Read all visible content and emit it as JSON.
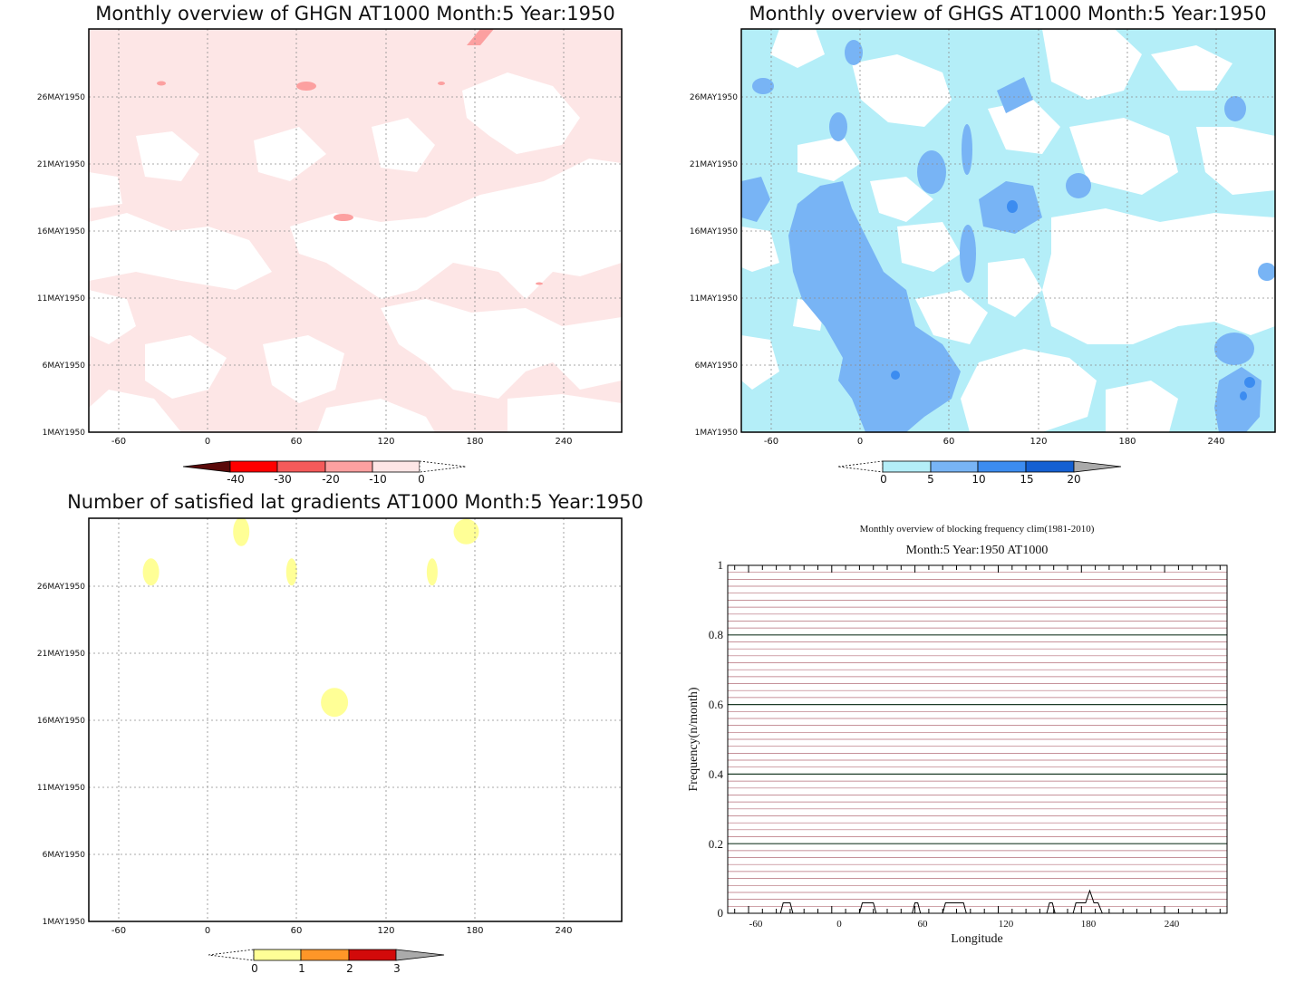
{
  "panels": {
    "ghgn": {
      "title": "Monthly overview of GHGN AT1000 Month:5 Year:1950",
      "colorbar_ticks": [
        "-40",
        "-30",
        "-20",
        "-10",
        "0"
      ],
      "colors": [
        "#5a0a0a",
        "#ff0000",
        "#f55a5a",
        "#fca0a0",
        "#fde6e6",
        "#ffffff"
      ]
    },
    "ghgs": {
      "title": "Monthly overview of GHGS AT1000 Month:5 Year:1950",
      "colorbar_ticks": [
        "0",
        "5",
        "10",
        "15",
        "20"
      ],
      "colors": [
        "#ffffff",
        "#b4eef8",
        "#78b4f5",
        "#3c8cf0",
        "#1460d2",
        "#aaaaaa"
      ]
    },
    "nsat": {
      "title": "Number of satisfied lat gradients AT1000 Month:5 Year:1950",
      "colorbar_ticks": [
        "0",
        "1",
        "2",
        "3"
      ],
      "colors": [
        "#ffffff",
        "#ffff96",
        "#ff9628",
        "#d20a0a",
        "#aaaaaa"
      ]
    }
  },
  "common_axes": {
    "x_ticks": [
      "-60",
      "0",
      "60",
      "120",
      "180",
      "240"
    ],
    "y_ticks": [
      "1MAY1950",
      "6MAY1950",
      "11MAY1950",
      "16MAY1950",
      "21MAY1950",
      "26MAY1950"
    ]
  },
  "freq": {
    "title": "Monthly overview of blocking frequency clim(1981-2010)",
    "subtitle": "Month:5 Year:1950  AT1000",
    "xlabel": "Longitude",
    "ylabel": "Frequency(n/month)",
    "x_ticks": [
      "-60",
      "0",
      "60",
      "120",
      "180",
      "240"
    ],
    "y_ticks": [
      "0",
      "0.2",
      "0.4",
      "0.6",
      "0.8",
      "1"
    ]
  },
  "chart_data": [
    {
      "type": "heatmap",
      "title": "Monthly overview of GHGN AT1000 Month:5 Year:1950",
      "x_axis": "longitude",
      "xlim": [
        -75,
        285
      ],
      "y_axis": "date",
      "ylim": [
        "1MAY1950",
        "31MAY1950"
      ],
      "grid": true,
      "levels": [
        -40,
        -30,
        -20,
        -10,
        0
      ],
      "description_values": "mostly 0 to -10 band with scattered -10 to -20 spots near top"
    },
    {
      "type": "heatmap",
      "title": "Monthly overview of GHGS AT1000 Month:5 Year:1950",
      "x_axis": "longitude",
      "xlim": [
        -75,
        285
      ],
      "y_axis": "date",
      "ylim": [
        "1MAY1950",
        "31MAY1950"
      ],
      "grid": true,
      "levels": [
        0,
        5,
        10,
        15,
        20
      ]
    },
    {
      "type": "heatmap",
      "title": "Number of satisfied lat gradients AT1000 Month:5 Year:1950",
      "x_axis": "longitude",
      "xlim": [
        -75,
        285
      ],
      "y_axis": "date",
      "ylim": [
        "1MAY1950",
        "31MAY1950"
      ],
      "grid": true,
      "levels": [
        0,
        1,
        2,
        3
      ],
      "spots": [
        {
          "lon": 28,
          "date": 30
        },
        {
          "lon": 180,
          "date": 30
        },
        {
          "lon": -33,
          "date": 27
        },
        {
          "lon": 62,
          "date": 27
        },
        {
          "lon": 157,
          "date": 27
        },
        {
          "lon": 91,
          "date": 17.3
        }
      ]
    },
    {
      "type": "line",
      "title": "Monthly overview of blocking frequency clim(1981-2010)",
      "subtitle": "Month:5 Year:1950  AT1000",
      "xlabel": "Longitude",
      "ylabel": "Frequency(n/month)",
      "xlim": [
        -75,
        285
      ],
      "ylim": [
        0,
        1
      ],
      "grid": true,
      "series": [
        {
          "x": [
            -75,
            -37,
            -35,
            -30,
            -28,
            -25,
            20,
            22,
            27,
            30,
            32,
            58,
            60,
            62,
            64,
            80,
            82,
            95,
            97,
            155,
            157,
            159,
            161,
            174,
            176,
            183,
            186,
            189,
            192,
            195,
            285
          ],
          "y": [
            0,
            0,
            0.03,
            0.03,
            0,
            0,
            0,
            0.03,
            0.03,
            0.03,
            0,
            0,
            0.03,
            0.03,
            0,
            0,
            0.03,
            0.03,
            0,
            0,
            0.03,
            0.03,
            0,
            0,
            0.03,
            0.03,
            0.065,
            0.03,
            0.03,
            0,
            0
          ]
        }
      ]
    }
  ]
}
